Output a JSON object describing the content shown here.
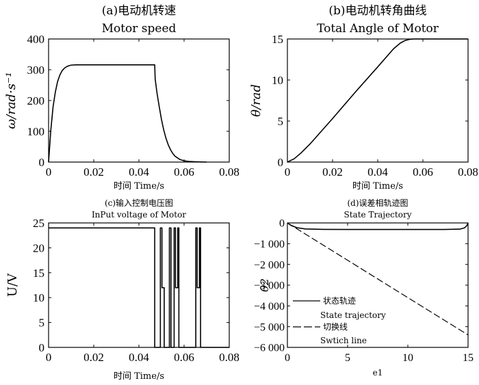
{
  "chart_data": [
    {
      "type": "line",
      "title": "(a)电动机转速",
      "subtitle": "Motor speed",
      "xlabel": "时间 Time/s",
      "ylabel": "ω/rad·s⁻¹",
      "xlim": [
        0,
        0.08
      ],
      "ylim": [
        0,
        400
      ],
      "xticks": [
        "0",
        "0.02",
        "0.04",
        "0.06",
        "0.08"
      ],
      "yticks": [
        "0",
        "100",
        "200",
        "300",
        "400"
      ],
      "grid": false,
      "series": [
        {
          "x": [
            0,
            0.001,
            0.002,
            0.003,
            0.004,
            0.005,
            0.006,
            0.007,
            0.008,
            0.009,
            0.01,
            0.012,
            0.014,
            0.016,
            0.02,
            0.03,
            0.04,
            0.047,
            0.0472,
            0.048,
            0.049,
            0.05,
            0.051,
            0.052,
            0.053,
            0.054,
            0.055,
            0.056,
            0.058,
            0.06,
            0.062,
            0.065,
            0.07
          ],
          "y": [
            0,
            105,
            180,
            228,
            262,
            283,
            297,
            305,
            310,
            313,
            315,
            316,
            316,
            316,
            316,
            316,
            316,
            316,
            270,
            225,
            180,
            138,
            104,
            77,
            56,
            40,
            28,
            19,
            9,
            4,
            2,
            1,
            0
          ]
        }
      ]
    },
    {
      "type": "line",
      "title": "(b)电动机转角曲线",
      "subtitle": "Total Angle of Motor",
      "xlabel": "时间 Time/s",
      "ylabel": "θ/rad",
      "xlim": [
        0,
        0.08
      ],
      "ylim": [
        0,
        15
      ],
      "xticks": [
        "0",
        "0.02",
        "0.04",
        "0.06",
        "0.08"
      ],
      "yticks": [
        "0",
        "5",
        "10",
        "15"
      ],
      "grid": false,
      "series": [
        {
          "x": [
            0,
            0.003,
            0.006,
            0.01,
            0.02,
            0.03,
            0.04,
            0.047,
            0.05,
            0.052,
            0.054,
            0.056,
            0.06,
            0.07,
            0.08
          ],
          "y": [
            0,
            0.4,
            1.1,
            2.2,
            5.3,
            8.5,
            11.6,
            13.8,
            14.5,
            14.8,
            14.95,
            15,
            15,
            15,
            15
          ]
        }
      ]
    },
    {
      "type": "line",
      "title": "(c)输入控制电压图",
      "subtitle": "InPut voltage of Motor",
      "xlabel": "时间 Time/s",
      "ylabel": "U/V",
      "xlim": [
        0,
        0.08
      ],
      "ylim": [
        0,
        25
      ],
      "xticks": [
        "0",
        "0.02",
        "0.04",
        "0.06",
        "0.08"
      ],
      "yticks": [
        "0",
        "5",
        "10",
        "15",
        "20",
        "25"
      ],
      "grid": false,
      "series": [
        {
          "x": [
            0,
            0.047,
            0.047,
            0.0495,
            0.0495,
            0.0502,
            0.0502,
            0.0512,
            0.0512,
            0.0535,
            0.0535,
            0.0542,
            0.0542,
            0.0556,
            0.0556,
            0.0562,
            0.0562,
            0.0572,
            0.0572,
            0.0577,
            0.0577,
            0.0652,
            0.0652,
            0.0658,
            0.0658,
            0.0668,
            0.0668,
            0.0673,
            0.0673,
            0.08
          ],
          "y": [
            24,
            24,
            0,
            0,
            24,
            24,
            12,
            12,
            0,
            0,
            24,
            24,
            0,
            0,
            24,
            24,
            12,
            12,
            24,
            24,
            0,
            0,
            24,
            24,
            12,
            12,
            24,
            24,
            0,
            0
          ]
        }
      ]
    },
    {
      "type": "line",
      "title": "(d)误差相轨迹图",
      "subtitle": "State Trajectory",
      "xlabel": "e1",
      "ylabel": "θ2",
      "xlim": [
        0,
        15
      ],
      "ylim": [
        -6000,
        0
      ],
      "xticks": [
        "0",
        "5",
        "10",
        "15"
      ],
      "yticks": [
        "0",
        "−1 000",
        "−2 000",
        "−3 000",
        "−4 000",
        "−5 000",
        "−6 000"
      ],
      "grid": false,
      "legend": "lower-left",
      "series": [
        {
          "name": "状态轨迹",
          "name_en": "State trajectory",
          "style": "solid",
          "x": [
            0,
            0.3,
            0.8,
            1.5,
            3,
            6,
            10,
            13,
            14.3,
            14.7,
            14.9,
            15
          ],
          "y": [
            0,
            -120,
            -230,
            -290,
            -310,
            -316,
            -316,
            -316,
            -300,
            -240,
            -130,
            0
          ]
        },
        {
          "name": "切换线",
          "name_en": "Swtich line",
          "style": "dashed",
          "x": [
            0,
            15
          ],
          "y": [
            0,
            -5400
          ]
        }
      ]
    }
  ]
}
